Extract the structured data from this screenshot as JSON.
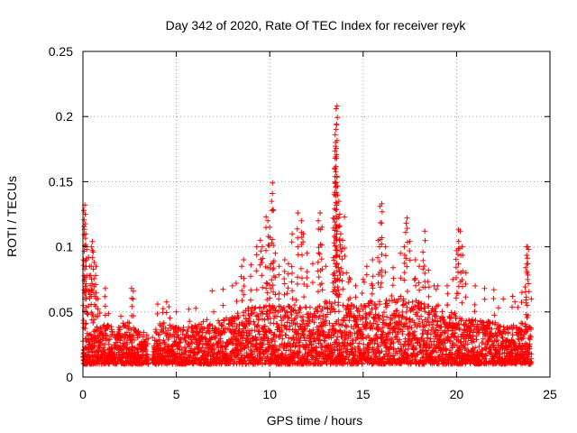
{
  "chart_data": {
    "type": "scatter",
    "title": "Day 342 of 2020, Rate Of TEC Index for receiver reyk",
    "xlabel": "GPS time / hours",
    "ylabel": "ROTI / TECUs",
    "xlim": [
      0,
      25
    ],
    "ylim": [
      0,
      0.25
    ],
    "xticks": [
      0,
      5,
      10,
      15,
      20,
      25
    ],
    "yticks": [
      0,
      0.05,
      0.1,
      0.15,
      0.2,
      0.25
    ],
    "xtick_labels": [
      "0",
      "5",
      "10",
      "15",
      "20",
      "25"
    ],
    "ytick_labels": [
      "0",
      "0.05",
      "0.1",
      "0.15",
      "0.2",
      "0.25"
    ],
    "grid": true,
    "marker": "+",
    "color": "#ff0000",
    "series": [
      {
        "name": "ROTI",
        "gaps": [
          [
            3.5,
            3.7
          ]
        ],
        "points": [
          [
            0.05,
            0.128
          ],
          [
            0.1,
            0.132
          ],
          [
            0.12,
            0.125
          ],
          [
            0.15,
            0.11
          ],
          [
            0.2,
            0.098
          ],
          [
            0.3,
            0.092
          ],
          [
            0.35,
            0.085
          ],
          [
            0.4,
            0.078
          ],
          [
            0.45,
            0.1
          ],
          [
            0.5,
            0.104
          ],
          [
            0.55,
            0.096
          ],
          [
            0.6,
            0.088
          ],
          [
            0.7,
            0.085
          ],
          [
            0.8,
            0.06
          ],
          [
            1.2,
            0.068
          ],
          [
            2.6,
            0.068
          ],
          [
            2.7,
            0.066
          ],
          [
            4.0,
            0.056
          ],
          [
            4.6,
            0.054
          ],
          [
            5.0,
            0.05
          ],
          [
            7.0,
            0.05
          ],
          [
            7.5,
            0.055
          ],
          [
            8.0,
            0.07
          ],
          [
            8.2,
            0.072
          ],
          [
            8.5,
            0.085
          ],
          [
            8.6,
            0.09
          ],
          [
            9.0,
            0.086
          ],
          [
            9.3,
            0.1
          ],
          [
            9.5,
            0.105
          ],
          [
            9.6,
            0.1
          ],
          [
            9.8,
            0.123
          ],
          [
            9.9,
            0.12
          ],
          [
            10.0,
            0.115
          ],
          [
            10.1,
            0.135
          ],
          [
            10.15,
            0.149
          ],
          [
            10.2,
            0.128
          ],
          [
            10.3,
            0.095
          ],
          [
            10.5,
            0.085
          ],
          [
            10.8,
            0.09
          ],
          [
            11.0,
            0.087
          ],
          [
            11.2,
            0.11
          ],
          [
            11.5,
            0.126
          ],
          [
            11.7,
            0.12
          ],
          [
            11.8,
            0.11
          ],
          [
            12.0,
            0.095
          ],
          [
            12.3,
            0.087
          ],
          [
            12.6,
            0.12
          ],
          [
            12.7,
            0.126
          ],
          [
            12.8,
            0.115
          ],
          [
            13.0,
            0.085
          ],
          [
            13.4,
            0.122
          ],
          [
            13.45,
            0.14
          ],
          [
            13.5,
            0.168
          ],
          [
            13.5,
            0.186
          ],
          [
            13.55,
            0.19
          ],
          [
            13.55,
            0.206
          ],
          [
            13.6,
            0.208
          ],
          [
            13.6,
            0.154
          ],
          [
            13.7,
            0.135
          ],
          [
            13.75,
            0.125
          ],
          [
            13.8,
            0.11
          ],
          [
            13.9,
            0.105
          ],
          [
            14.0,
            0.123
          ],
          [
            14.1,
            0.08
          ],
          [
            14.3,
            0.075
          ],
          [
            14.6,
            0.07
          ],
          [
            15.0,
            0.075
          ],
          [
            15.2,
            0.085
          ],
          [
            15.5,
            0.09
          ],
          [
            15.8,
            0.105
          ],
          [
            15.9,
            0.131
          ],
          [
            16.0,
            0.133
          ],
          [
            16.2,
            0.1
          ],
          [
            16.6,
            0.084
          ],
          [
            17.0,
            0.095
          ],
          [
            17.2,
            0.1
          ],
          [
            17.3,
            0.118
          ],
          [
            17.35,
            0.122
          ],
          [
            17.5,
            0.104
          ],
          [
            17.8,
            0.09
          ],
          [
            18.0,
            0.085
          ],
          [
            18.2,
            0.096
          ],
          [
            18.3,
            0.112
          ],
          [
            18.5,
            0.082
          ],
          [
            18.8,
            0.07
          ],
          [
            19.0,
            0.07
          ],
          [
            19.5,
            0.07
          ],
          [
            19.8,
            0.075
          ],
          [
            20.0,
            0.097
          ],
          [
            20.1,
            0.113
          ],
          [
            20.2,
            0.112
          ],
          [
            20.3,
            0.1
          ],
          [
            20.5,
            0.08
          ],
          [
            21.0,
            0.07
          ],
          [
            21.5,
            0.068
          ],
          [
            22.0,
            0.067
          ],
          [
            22.5,
            0.06
          ],
          [
            23.0,
            0.062
          ],
          [
            23.5,
            0.065
          ],
          [
            23.7,
            0.084
          ],
          [
            23.75,
            0.1
          ],
          [
            23.8,
            0.1
          ],
          [
            23.85,
            0.098
          ],
          [
            24.0,
            0.06
          ]
        ],
        "envelope": [
          [
            0,
            0.028
          ],
          [
            0.5,
            0.035
          ],
          [
            1.0,
            0.04
          ],
          [
            1.5,
            0.04
          ],
          [
            2.0,
            0.038
          ],
          [
            2.5,
            0.042
          ],
          [
            3.0,
            0.035
          ],
          [
            3.5,
            0.03
          ],
          [
            3.7,
            0.03
          ],
          [
            4.0,
            0.04
          ],
          [
            4.5,
            0.045
          ],
          [
            5.0,
            0.04
          ],
          [
            5.5,
            0.038
          ],
          [
            6.0,
            0.04
          ],
          [
            6.5,
            0.042
          ],
          [
            7.0,
            0.045
          ],
          [
            7.5,
            0.045
          ],
          [
            8.0,
            0.048
          ],
          [
            8.5,
            0.05
          ],
          [
            9.0,
            0.055
          ],
          [
            9.5,
            0.055
          ],
          [
            10.0,
            0.055
          ],
          [
            10.5,
            0.055
          ],
          [
            11.0,
            0.055
          ],
          [
            11.5,
            0.055
          ],
          [
            12.0,
            0.055
          ],
          [
            12.5,
            0.055
          ],
          [
            13.0,
            0.058
          ],
          [
            13.5,
            0.058
          ],
          [
            14.0,
            0.058
          ],
          [
            14.5,
            0.055
          ],
          [
            15.0,
            0.058
          ],
          [
            15.5,
            0.06
          ],
          [
            16.0,
            0.062
          ],
          [
            16.5,
            0.06
          ],
          [
            17.0,
            0.062
          ],
          [
            17.5,
            0.062
          ],
          [
            18.0,
            0.058
          ],
          [
            18.5,
            0.055
          ],
          [
            19.0,
            0.052
          ],
          [
            19.5,
            0.05
          ],
          [
            20.0,
            0.05
          ],
          [
            20.5,
            0.048
          ],
          [
            21.0,
            0.045
          ],
          [
            21.5,
            0.045
          ],
          [
            22.0,
            0.042
          ],
          [
            22.5,
            0.04
          ],
          [
            23.0,
            0.04
          ],
          [
            23.5,
            0.042
          ],
          [
            24.0,
            0.038
          ]
        ],
        "floor": 0.01
      }
    ]
  }
}
